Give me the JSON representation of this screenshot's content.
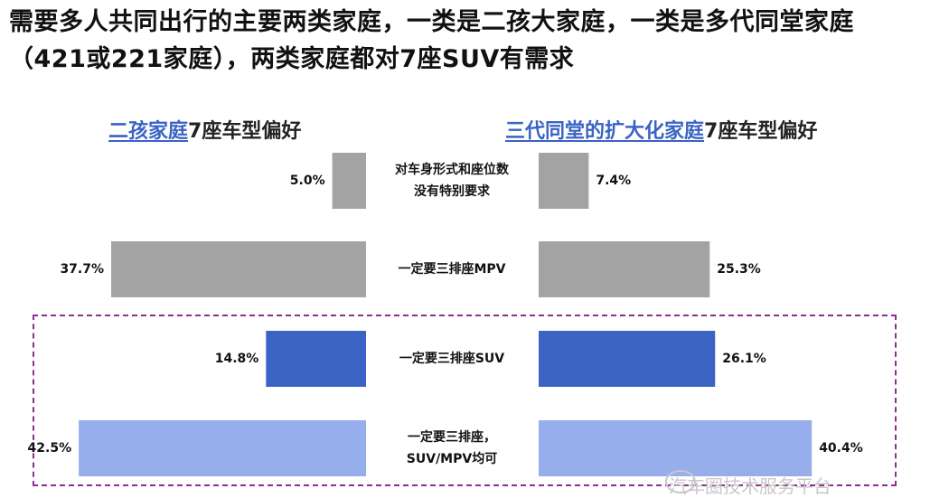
{
  "title": "需要多人共同出行的主要两类家庭，一类是二孩大家庭，一类是多代同堂家庭（421或221家庭），两类家庭都对7座SUV有需求",
  "left_heading": {
    "underlined": "二孩家庭",
    "rest": "7座车型偏好"
  },
  "right_heading": {
    "underlined": "三代同堂的扩大化家庭",
    "rest": "7座车型偏好"
  },
  "watermark": "汽车圈技术服务平台",
  "colors": {
    "gray": "#a3a3a3",
    "blue": "#3a63c4",
    "light_blue": "#97aeed",
    "dash": "#8e2f8e"
  },
  "chart_data": {
    "type": "bar",
    "categories": [
      "对车身形式和座位数 没有特别要求",
      "一定要三排座MPV",
      "一定要三排座SUV",
      "一定要三排座， SUV/MPV均可"
    ],
    "category_lines": [
      [
        "对车身形式和座位数",
        "没有特别要求"
      ],
      [
        "一定要三排座MPV"
      ],
      [
        "一定要三排座SUV"
      ],
      [
        "一定要三排座，",
        "SUV/MPV均可"
      ]
    ],
    "series": [
      {
        "name": "二孩家庭",
        "values": [
          5.0,
          37.7,
          14.8,
          42.5
        ],
        "labels": [
          "5.0%",
          "37.7%",
          "14.8%",
          "42.5%"
        ]
      },
      {
        "name": "三代同堂的扩大化家庭",
        "values": [
          7.4,
          25.3,
          26.1,
          40.4
        ],
        "labels": [
          "7.4%",
          "25.3%",
          "26.1%",
          "40.4%"
        ]
      }
    ],
    "bar_colors": [
      "gray",
      "gray",
      "blue",
      "light_blue"
    ],
    "highlighted_categories": [
      "一定要三排座SUV",
      "一定要三排座， SUV/MPV均可"
    ]
  }
}
